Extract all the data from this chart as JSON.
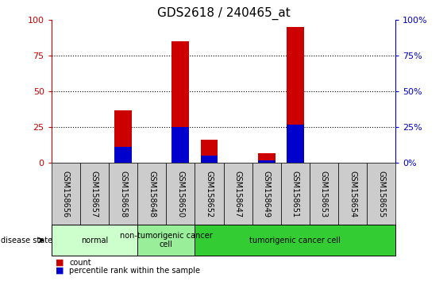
{
  "title": "GDS2618 / 240465_at",
  "samples": [
    "GSM158656",
    "GSM158657",
    "GSM158658",
    "GSM158648",
    "GSM158650",
    "GSM158652",
    "GSM158647",
    "GSM158649",
    "GSM158651",
    "GSM158653",
    "GSM158654",
    "GSM158655"
  ],
  "count_values": [
    0,
    0,
    37,
    0,
    85,
    16,
    0,
    7,
    95,
    0,
    0,
    0
  ],
  "percentile_values": [
    0,
    0,
    11,
    0,
    25,
    5,
    0,
    2,
    27,
    0,
    0,
    0
  ],
  "groups": [
    {
      "label": "normal",
      "start": 0,
      "end": 3,
      "color": "#ccffcc"
    },
    {
      "label": "non-tumorigenic cancer\ncell",
      "start": 3,
      "end": 5,
      "color": "#99ee99"
    },
    {
      "label": "tumorigenic cancer cell",
      "start": 5,
      "end": 12,
      "color": "#33cc33"
    }
  ],
  "ylim": [
    0,
    100
  ],
  "yticks": [
    0,
    25,
    50,
    75,
    100
  ],
  "bar_color_count": "#cc0000",
  "bar_color_pct": "#0000cc",
  "background_color": "#ffffff",
  "axis_left_color": "#cc0000",
  "axis_right_color": "#0000cc",
  "grid_color": "#000000",
  "sample_box_color": "#cccccc",
  "tick_label_fontsize": 7,
  "title_fontsize": 11,
  "bar_width": 0.6
}
